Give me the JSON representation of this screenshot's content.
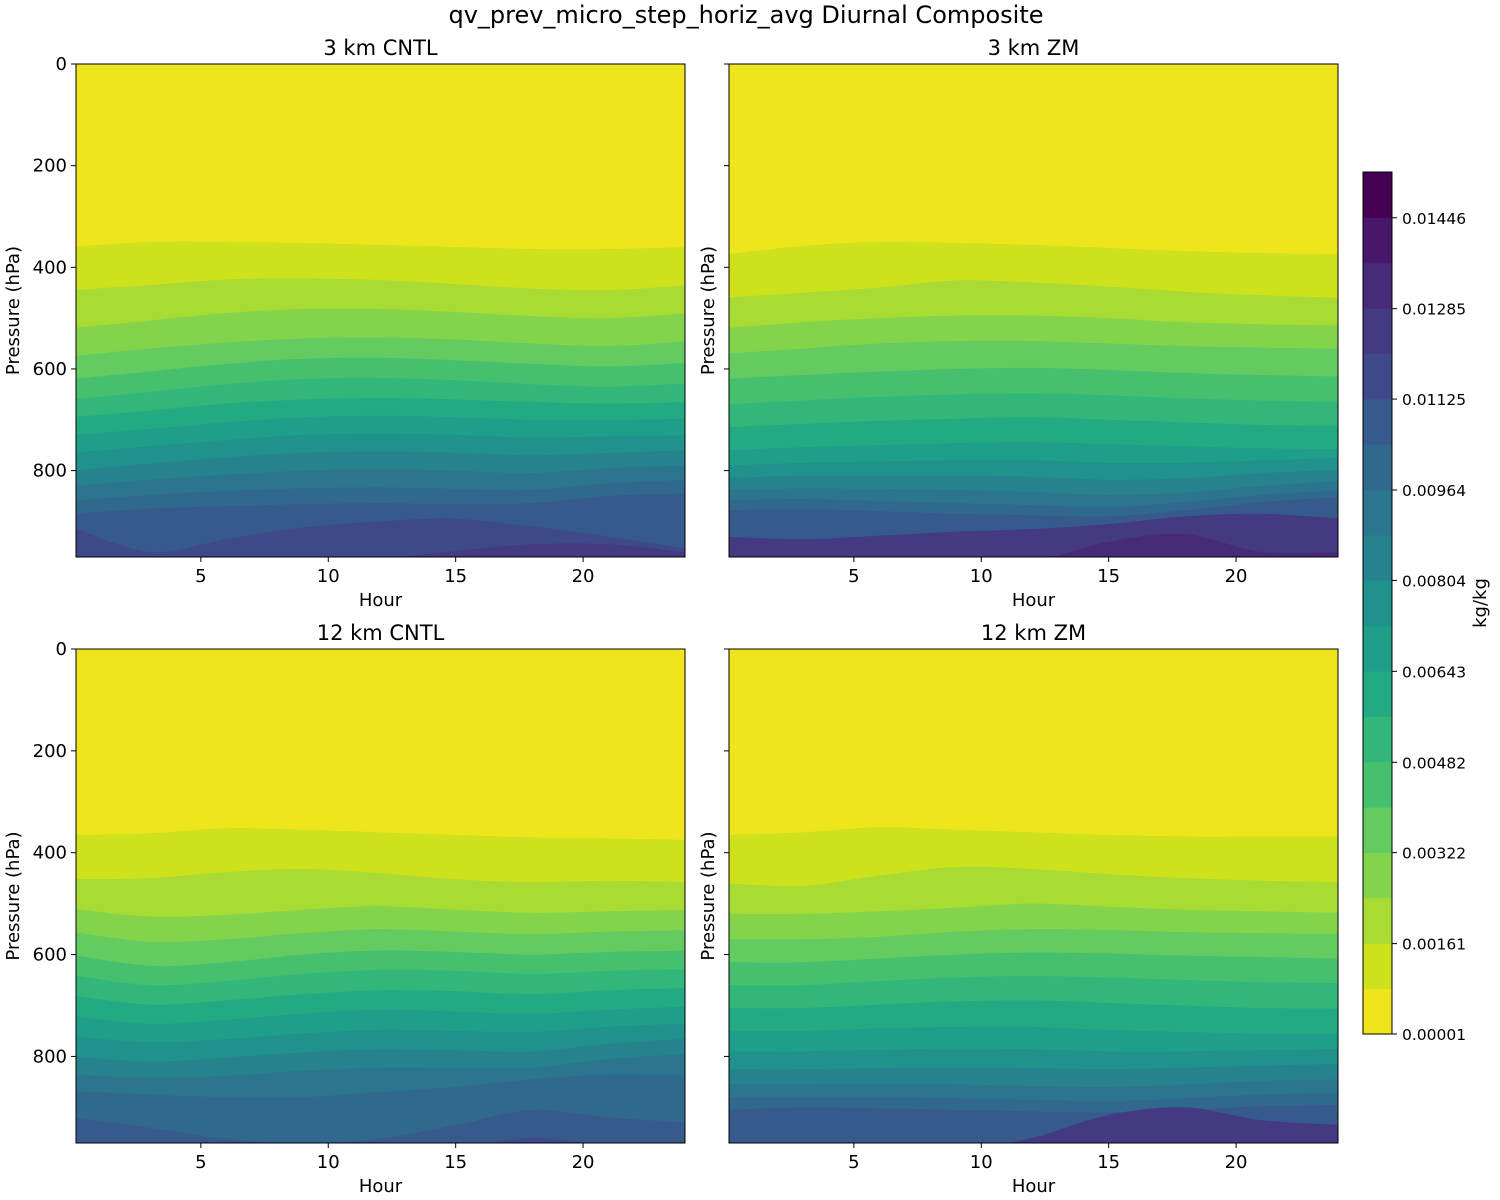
{
  "chart_data": {
    "type": "contourf",
    "title": "qv_prev_micro_step_horiz_avg Diurnal Composite",
    "xlim": [
      0.1,
      24
    ],
    "ylim": [
      0,
      970
    ],
    "y_inverted": true,
    "x_ticks": [
      5,
      10,
      15,
      20
    ],
    "y_ticks": [
      0,
      200,
      400,
      600,
      800
    ],
    "grid": false,
    "colorbar": {
      "label": "kg/kg",
      "colormap": "viridis_r",
      "range": [
        1e-05,
        0.01527
      ],
      "tick_labels": [
        "0.00001",
        "0.00161",
        "0.00322",
        "0.00482",
        "0.00643",
        "0.00804",
        "0.00964",
        "0.01125",
        "0.01285",
        "0.01446"
      ],
      "n_levels": 19,
      "colors_low_to_high": [
        "#efe51c",
        "#cde11d",
        "#a8db34",
        "#84d44b",
        "#63cb5f",
        "#46c06f",
        "#32b67a",
        "#24aa83",
        "#1f9e89",
        "#21918c",
        "#26838e",
        "#2b758e",
        "#31688e",
        "#375a8c",
        "#3e4989",
        "#443a83",
        "#472a7a",
        "#481769",
        "#440154"
      ]
    },
    "panels": [
      {
        "title": "3 km CNTL",
        "xlabel": "Hour",
        "ylabel": "Pressure (hPa)",
        "position": "top-left",
        "hours": [
          0,
          3,
          6,
          9,
          12,
          15,
          18,
          21,
          24
        ],
        "contour_pressures_hpa": [
          [
            360,
            350,
            350,
            352,
            356,
            360,
            364,
            364,
            360
          ],
          [
            445,
            435,
            424,
            422,
            425,
            433,
            442,
            445,
            435
          ],
          [
            520,
            505,
            490,
            482,
            482,
            488,
            496,
            500,
            490
          ],
          [
            575,
            560,
            548,
            540,
            538,
            542,
            550,
            555,
            545
          ],
          [
            620,
            605,
            590,
            580,
            578,
            583,
            590,
            595,
            588
          ],
          [
            660,
            645,
            630,
            620,
            618,
            622,
            630,
            635,
            628
          ],
          [
            695,
            682,
            668,
            660,
            657,
            660,
            665,
            668,
            665
          ],
          [
            730,
            718,
            705,
            695,
            692,
            695,
            700,
            700,
            698
          ],
          [
            765,
            752,
            740,
            730,
            727,
            730,
            735,
            733,
            730
          ],
          [
            800,
            786,
            774,
            765,
            762,
            765,
            770,
            765,
            760
          ],
          [
            830,
            818,
            808,
            800,
            797,
            800,
            805,
            795,
            790
          ],
          [
            860,
            848,
            840,
            835,
            833,
            836,
            838,
            825,
            818
          ],
          [
            885,
            875,
            870,
            866,
            864,
            866,
            864,
            850,
            845
          ],
          [
            910,
            960,
            935,
            912,
            900,
            895,
            910,
            930,
            955
          ],
          [
            985,
            985,
            985,
            985,
            975,
            958,
            945,
            945,
            962
          ]
        ]
      },
      {
        "title": "3 km ZM",
        "xlabel": "Hour",
        "ylabel": "Pressure (hPa)",
        "position": "top-right",
        "hours": [
          0,
          3,
          6,
          9,
          12,
          15,
          18,
          21,
          24
        ],
        "contour_pressures_hpa": [
          [
            375,
            358,
            350,
            352,
            356,
            362,
            368,
            372,
            375
          ],
          [
            460,
            450,
            440,
            426,
            430,
            438,
            448,
            455,
            460
          ],
          [
            520,
            508,
            500,
            495,
            495,
            500,
            508,
            512,
            515
          ],
          [
            570,
            560,
            550,
            545,
            545,
            550,
            555,
            558,
            560
          ],
          [
            620,
            612,
            605,
            600,
            598,
            602,
            608,
            612,
            615
          ],
          [
            670,
            662,
            655,
            650,
            648,
            652,
            658,
            662,
            665
          ],
          [
            715,
            708,
            702,
            698,
            695,
            700,
            705,
            710,
            712
          ],
          [
            760,
            754,
            750,
            746,
            744,
            748,
            752,
            756,
            758
          ],
          [
            790,
            785,
            782,
            780,
            780,
            785,
            785,
            780,
            775
          ],
          [
            815,
            810,
            810,
            810,
            812,
            818,
            815,
            805,
            798
          ],
          [
            838,
            835,
            836,
            838,
            842,
            848,
            843,
            830,
            820
          ],
          [
            858,
            856,
            860,
            864,
            868,
            872,
            862,
            848,
            838
          ],
          [
            878,
            876,
            880,
            885,
            888,
            890,
            878,
            862,
            852
          ],
          [
            930,
            935,
            928,
            920,
            915,
            905,
            890,
            885,
            895
          ],
          [
            985,
            985,
            985,
            985,
            978,
            940,
            925,
            960,
            960
          ]
        ]
      },
      {
        "title": "12 km CNTL",
        "xlabel": "Hour",
        "ylabel": "Pressure (hPa)",
        "position": "bottom-left",
        "hours": [
          0,
          3,
          6,
          9,
          12,
          15,
          18,
          21,
          24
        ],
        "contour_pressures_hpa": [
          [
            365,
            362,
            352,
            355,
            360,
            365,
            370,
            372,
            375
          ],
          [
            452,
            450,
            438,
            432,
            440,
            452,
            458,
            455,
            458
          ],
          [
            510,
            525,
            522,
            512,
            505,
            512,
            518,
            515,
            512
          ],
          [
            555,
            575,
            570,
            558,
            550,
            555,
            560,
            555,
            552
          ],
          [
            600,
            622,
            615,
            600,
            592,
            595,
            600,
            595,
            592
          ],
          [
            640,
            660,
            652,
            638,
            630,
            632,
            638,
            632,
            628
          ],
          [
            680,
            698,
            690,
            678,
            670,
            672,
            678,
            670,
            665
          ],
          [
            720,
            736,
            728,
            716,
            708,
            712,
            716,
            708,
            702
          ],
          [
            760,
            772,
            766,
            755,
            748,
            750,
            752,
            742,
            735
          ],
          [
            800,
            810,
            802,
            792,
            786,
            788,
            790,
            775,
            765
          ],
          [
            835,
            842,
            838,
            828,
            822,
            822,
            822,
            805,
            795
          ],
          [
            868,
            875,
            880,
            880,
            870,
            860,
            845,
            835,
            838
          ],
          [
            920,
            940,
            962,
            970,
            962,
            935,
            905,
            920,
            930
          ],
          [
            985,
            985,
            985,
            985,
            985,
            980,
            960,
            975,
            975
          ]
        ]
      },
      {
        "title": "12 km ZM",
        "xlabel": "Hour",
        "ylabel": "Pressure (hPa)",
        "position": "bottom-right",
        "hours": [
          0,
          3,
          6,
          9,
          12,
          15,
          18,
          21,
          24
        ],
        "contour_pressures_hpa": [
          [
            365,
            360,
            350,
            355,
            360,
            365,
            368,
            368,
            368
          ],
          [
            460,
            465,
            445,
            428,
            432,
            442,
            450,
            455,
            458
          ],
          [
            520,
            520,
            515,
            508,
            500,
            506,
            512,
            515,
            518
          ],
          [
            570,
            570,
            565,
            555,
            550,
            552,
            556,
            558,
            560
          ],
          [
            615,
            615,
            608,
            600,
            596,
            598,
            602,
            605,
            608
          ],
          [
            660,
            660,
            652,
            645,
            642,
            645,
            650,
            654,
            656
          ],
          [
            705,
            705,
            698,
            692,
            690,
            695,
            700,
            705,
            706
          ],
          [
            750,
            750,
            745,
            742,
            742,
            748,
            752,
            755,
            756
          ],
          [
            790,
            790,
            787,
            785,
            786,
            790,
            790,
            788,
            785
          ],
          [
            825,
            825,
            823,
            822,
            823,
            825,
            822,
            818,
            815
          ],
          [
            855,
            855,
            854,
            855,
            858,
            860,
            855,
            848,
            845
          ],
          [
            880,
            880,
            880,
            882,
            885,
            888,
            882,
            875,
            872
          ],
          [
            905,
            900,
            902,
            905,
            908,
            910,
            905,
            898,
            895
          ],
          [
            985,
            985,
            985,
            985,
            960,
            915,
            900,
            925,
            935
          ]
        ]
      }
    ]
  }
}
